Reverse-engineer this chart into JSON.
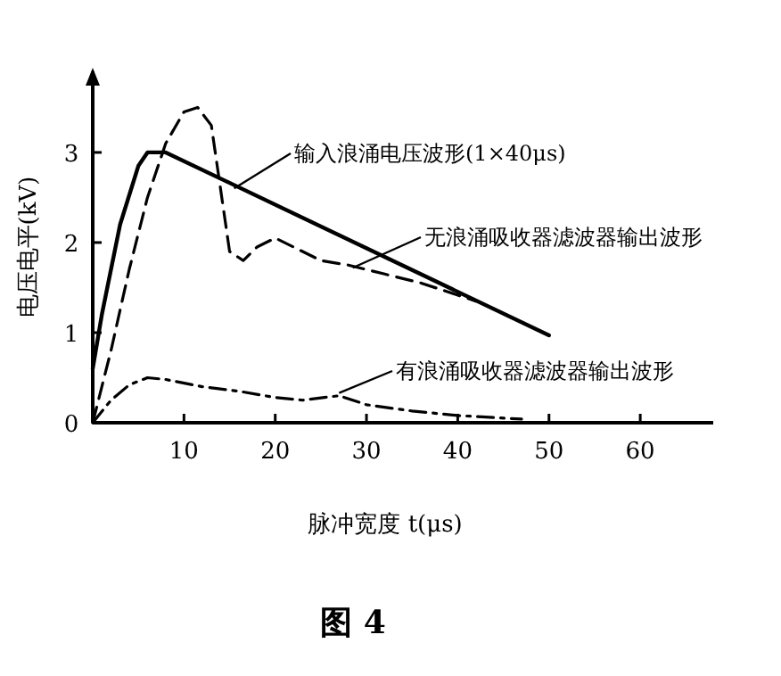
{
  "chart_data": {
    "type": "line",
    "title": "图 4",
    "xlabel": "脉冲宽度 t(μs)",
    "ylabel": "电压电平(kV)",
    "xlim": [
      0,
      68
    ],
    "ylim": [
      0,
      3.9
    ],
    "xticks": [
      10,
      20,
      30,
      40,
      50,
      60
    ],
    "yticks": [
      0,
      1,
      2,
      3
    ],
    "grid": false,
    "marker": "none",
    "series": [
      {
        "color": "#000000",
        "line_style": "solid",
        "x": [
          0,
          1,
          3,
          5,
          6,
          8,
          50
        ],
        "values": [
          0.6,
          1.2,
          2.2,
          2.85,
          3.0,
          3.0,
          0.97
        ]
      },
      {
        "color": "#000000",
        "line_style": "dashed",
        "x": [
          0,
          2,
          4,
          6,
          8,
          10,
          11.5,
          13,
          14,
          15,
          16.5,
          18,
          20,
          22,
          25,
          28,
          32,
          36,
          42
        ],
        "values": [
          0,
          0.8,
          1.7,
          2.5,
          3.1,
          3.45,
          3.5,
          3.3,
          2.6,
          1.9,
          1.8,
          1.95,
          2.05,
          1.95,
          1.8,
          1.75,
          1.65,
          1.55,
          1.35
        ]
      },
      {
        "color": "#000000",
        "line_style": "dashdot",
        "x": [
          0,
          2,
          4,
          6,
          8,
          12,
          16,
          20,
          23,
          27,
          30,
          35,
          40,
          47
        ],
        "values": [
          0,
          0.25,
          0.42,
          0.5,
          0.48,
          0.4,
          0.35,
          0.28,
          0.25,
          0.3,
          0.2,
          0.13,
          0.08,
          0.04
        ]
      }
    ],
    "annotations": [
      {
        "text": "输入浪涌电压波形(1×40μs)",
        "x": 15.5,
        "y": 2.6
      },
      {
        "text": "无浪涌吸收器滤波器输出波形",
        "x": 28.5,
        "y": 1.72
      },
      {
        "text": "有浪涌吸收器滤波器输出波形",
        "x": 27,
        "y": 0.33
      }
    ]
  }
}
